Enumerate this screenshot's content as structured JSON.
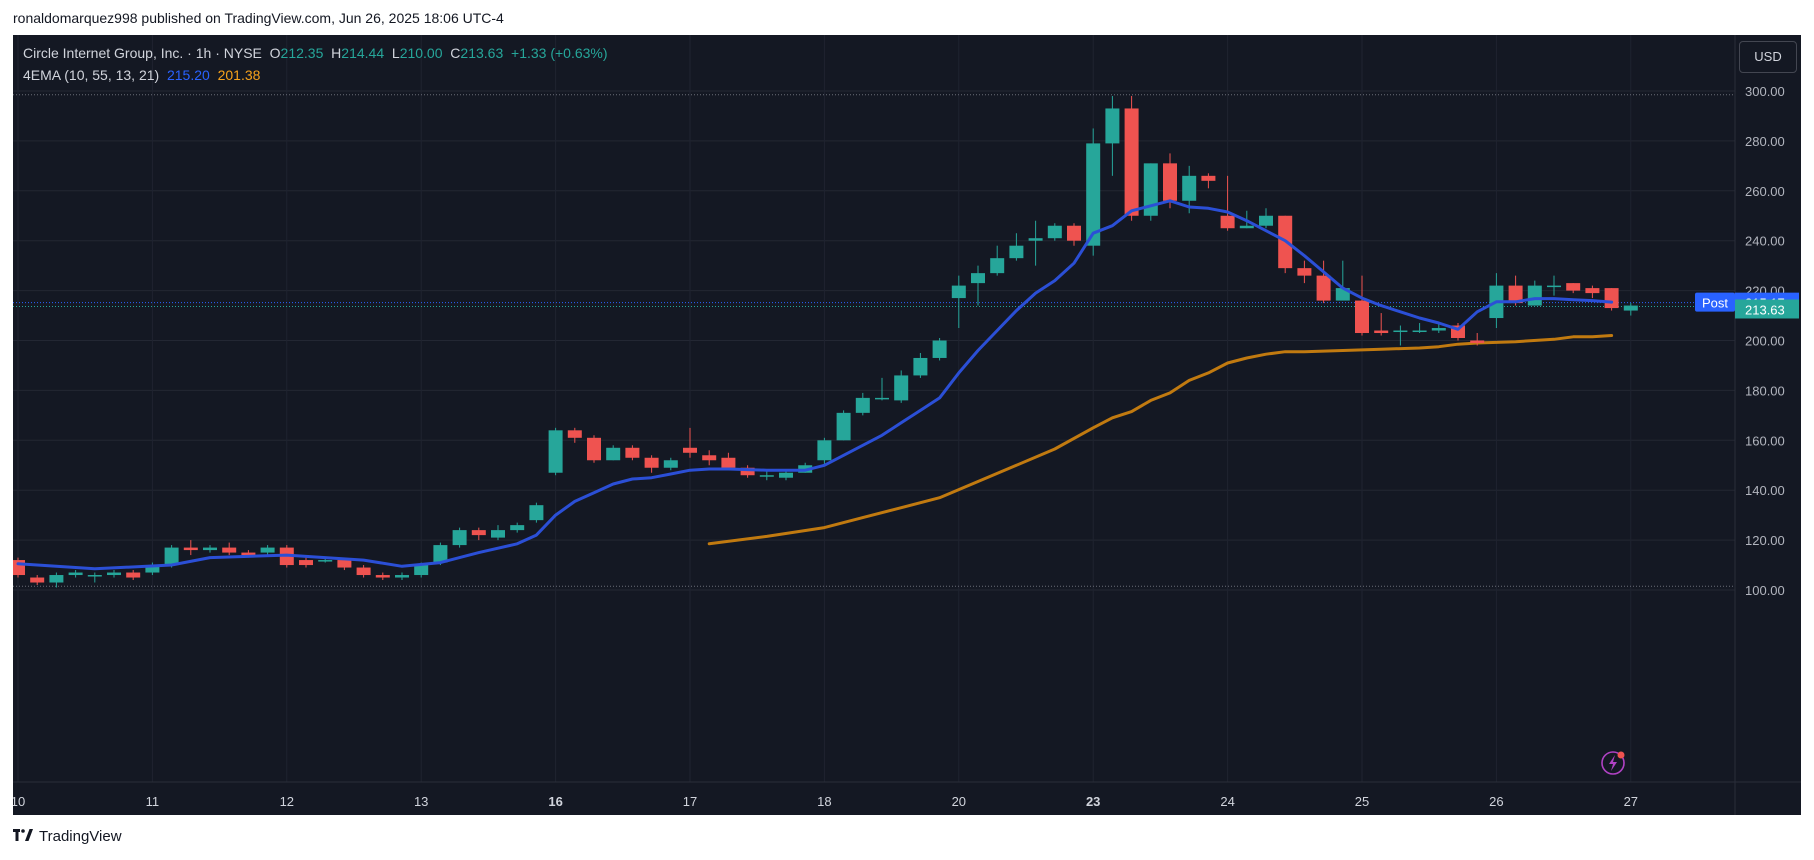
{
  "attribution": "ronaldomarquez998 published on TradingView.com, Jun 26, 2025 18:06 UTC-4",
  "legend": {
    "symbol": "Circle Internet Group, Inc. · 1h · NYSE",
    "o_label": "O",
    "o_value": "212.35",
    "h_label": "H",
    "h_value": "214.44",
    "l_label": "L",
    "l_value": "210.00",
    "c_label": "C",
    "c_value": "213.63",
    "change": "+1.33 (+0.63%)",
    "indicator": "4EMA (10, 55, 13, 21)",
    "ema_fast_value": "215.20",
    "ema_slow_value": "201.38"
  },
  "currency_button": "USD",
  "post_tag": {
    "label": "Post",
    "value": "215.17"
  },
  "last_price_tag": "213.63",
  "footer_brand": "TradingView",
  "colors": {
    "background": "#141823",
    "up": "#26a69a",
    "down": "#ef5350",
    "ema_fast": "#2b4fd6",
    "ema_slow": "#c17a10",
    "text": "#d1d4dc"
  },
  "chart_data": {
    "type": "candlestick",
    "title": "Circle Internet Group, Inc. · 1h · NYSE",
    "ylim": [
      80,
      308
    ],
    "y_ticks": [
      "100.00",
      "120.00",
      "140.00",
      "160.00",
      "180.00",
      "200.00",
      "220.00",
      "240.00",
      "260.00",
      "280.00",
      "300.00"
    ],
    "x_ticks": [
      {
        "label": "10",
        "pos": 0.0,
        "bold": false
      },
      {
        "label": "11",
        "pos": 7.0,
        "bold": false
      },
      {
        "label": "12",
        "pos": 14.0,
        "bold": false
      },
      {
        "label": "13",
        "pos": 21.0,
        "bold": false
      },
      {
        "label": "16",
        "pos": 28.0,
        "bold": true
      },
      {
        "label": "17",
        "pos": 35.0,
        "bold": false
      },
      {
        "label": "18",
        "pos": 42.0,
        "bold": false
      },
      {
        "label": "20",
        "pos": 49.0,
        "bold": false
      },
      {
        "label": "23",
        "pos": 56.0,
        "bold": true
      },
      {
        "label": "24",
        "pos": 63.0,
        "bold": false
      },
      {
        "label": "25",
        "pos": 70.0,
        "bold": false
      },
      {
        "label": "26",
        "pos": 77.0,
        "bold": false
      },
      {
        "label": "27",
        "pos": 84.0,
        "bold": false
      }
    ],
    "dotted_levels": [
      298.5,
      101.5
    ],
    "candles": [
      [
        112,
        106,
        113,
        105
      ],
      [
        105,
        103,
        106,
        102
      ],
      [
        103,
        106,
        107,
        101
      ],
      [
        106,
        107,
        108,
        105
      ],
      [
        106,
        106,
        107,
        103
      ],
      [
        106,
        107,
        108,
        105
      ],
      [
        107,
        105,
        108,
        104
      ],
      [
        107,
        110,
        111,
        106
      ],
      [
        110,
        117,
        118,
        109
      ],
      [
        117,
        116,
        120,
        114
      ],
      [
        116,
        117,
        118,
        115
      ],
      [
        117,
        115,
        119,
        114
      ],
      [
        115,
        114,
        116,
        113
      ],
      [
        115,
        117,
        118,
        114
      ],
      [
        117,
        110,
        118,
        109
      ],
      [
        112,
        110,
        113,
        109
      ],
      [
        112,
        112,
        113,
        111
      ],
      [
        112,
        109,
        113,
        108
      ],
      [
        109,
        106,
        110,
        105
      ],
      [
        106,
        105,
        107,
        104
      ],
      [
        105,
        106,
        107,
        104
      ],
      [
        106,
        110,
        111,
        105
      ],
      [
        111,
        118,
        119,
        110
      ],
      [
        118,
        124,
        125,
        117
      ],
      [
        124,
        122,
        125,
        120
      ],
      [
        121,
        124,
        126,
        120
      ],
      [
        124,
        126,
        127,
        123
      ],
      [
        128,
        134,
        135,
        127
      ],
      [
        147,
        164,
        165,
        146
      ],
      [
        164,
        161,
        165,
        159
      ],
      [
        161,
        152,
        162,
        151
      ],
      [
        152,
        157,
        158,
        152
      ],
      [
        157,
        153,
        158,
        152
      ],
      [
        153,
        149,
        154,
        147
      ],
      [
        149,
        152,
        153,
        148
      ],
      [
        157,
        155,
        165,
        153
      ],
      [
        154,
        152,
        156,
        150
      ],
      [
        153,
        149,
        155,
        148
      ],
      [
        149,
        146,
        150,
        145
      ],
      [
        146,
        146,
        148,
        144
      ],
      [
        145,
        147,
        148,
        144
      ],
      [
        147,
        150,
        151,
        147
      ],
      [
        152,
        160,
        161,
        150
      ],
      [
        160,
        171,
        172,
        160
      ],
      [
        171,
        177,
        179,
        170
      ],
      [
        177,
        177,
        185,
        176
      ],
      [
        176,
        186,
        188,
        175
      ],
      [
        186,
        193,
        195,
        185
      ],
      [
        193,
        200,
        201,
        192
      ],
      [
        217,
        222,
        226,
        205
      ],
      [
        223,
        227,
        230,
        214
      ],
      [
        227,
        233,
        238,
        226
      ],
      [
        233,
        238,
        243,
        232
      ],
      [
        240,
        241,
        248,
        230
      ],
      [
        241,
        246,
        247,
        240
      ],
      [
        246,
        240,
        247,
        238
      ],
      [
        238,
        279,
        285,
        234
      ],
      [
        279,
        293,
        298,
        266
      ],
      [
        293,
        250,
        298,
        248
      ],
      [
        250,
        271,
        271,
        248
      ],
      [
        271,
        256,
        275,
        253
      ],
      [
        256,
        266,
        270,
        251
      ],
      [
        266,
        264,
        267,
        261
      ],
      [
        250,
        245,
        266,
        244
      ],
      [
        245,
        246,
        252,
        245
      ],
      [
        246,
        250,
        253,
        245
      ],
      [
        250,
        229,
        250,
        227
      ],
      [
        229,
        226,
        232,
        223
      ],
      [
        226,
        216,
        232,
        215
      ],
      [
        216,
        221,
        232,
        217
      ],
      [
        216,
        203,
        226,
        202
      ],
      [
        204,
        203,
        211,
        202
      ],
      [
        204,
        204,
        206,
        198
      ],
      [
        204,
        204,
        207,
        203
      ],
      [
        204,
        205,
        207,
        203
      ],
      [
        206,
        201,
        207,
        200
      ],
      [
        200,
        199,
        203,
        198
      ],
      [
        209,
        222,
        227,
        205
      ],
      [
        222,
        215,
        226,
        214
      ],
      [
        214,
        222,
        224,
        215
      ],
      [
        222,
        222,
        226,
        218
      ],
      [
        223,
        220,
        223,
        219
      ],
      [
        221,
        219,
        222,
        217
      ],
      [
        221,
        213,
        221,
        212
      ],
      [
        212,
        214,
        215,
        210
      ]
    ],
    "ema_fast_name": "EMA 10",
    "ema_fast": [
      [
        0,
        110.5
      ],
      [
        4,
        108.5
      ],
      [
        8,
        110
      ],
      [
        10,
        113
      ],
      [
        14,
        114
      ],
      [
        18,
        112
      ],
      [
        20,
        109.5
      ],
      [
        22,
        111
      ],
      [
        24,
        115
      ],
      [
        26,
        118.5
      ],
      [
        27,
        122
      ],
      [
        28,
        130
      ],
      [
        29,
        135.5
      ],
      [
        30,
        139
      ],
      [
        31,
        142.5
      ],
      [
        32,
        144.5
      ],
      [
        33,
        145
      ],
      [
        34,
        146.5
      ],
      [
        35,
        148
      ],
      [
        36,
        148.5
      ],
      [
        37,
        148.5
      ],
      [
        39,
        148
      ],
      [
        41,
        148
      ],
      [
        42,
        150
      ],
      [
        43,
        154
      ],
      [
        44,
        158
      ],
      [
        45,
        162
      ],
      [
        46,
        167
      ],
      [
        47,
        172
      ],
      [
        48,
        177
      ],
      [
        49,
        187
      ],
      [
        50,
        196
      ],
      [
        51,
        204
      ],
      [
        52,
        212
      ],
      [
        53,
        219
      ],
      [
        54,
        224
      ],
      [
        55,
        231
      ],
      [
        56,
        243
      ],
      [
        57,
        246
      ],
      [
        58,
        252
      ],
      [
        59,
        254
      ],
      [
        60,
        256
      ],
      [
        61,
        253.5
      ],
      [
        62,
        253
      ],
      [
        63,
        251.5
      ],
      [
        64,
        248
      ],
      [
        65,
        244
      ],
      [
        66,
        240
      ],
      [
        67,
        234
      ],
      [
        68,
        227.5
      ],
      [
        69,
        221
      ],
      [
        70,
        217
      ],
      [
        71,
        214
      ],
      [
        72,
        211.5
      ],
      [
        73,
        209
      ],
      [
        74,
        207
      ],
      [
        75,
        204.5
      ],
      [
        76,
        211.5
      ],
      [
        77,
        215.5
      ],
      [
        78,
        215.5
      ],
      [
        79,
        216.8
      ],
      [
        80,
        216.8
      ],
      [
        81,
        216.3
      ],
      [
        82,
        216
      ],
      [
        83,
        215.4
      ]
    ],
    "ema_slow_name": "EMA 55",
    "ema_slow": [
      [
        36,
        118.5
      ],
      [
        39,
        121.5
      ],
      [
        42,
        125
      ],
      [
        44,
        129
      ],
      [
        46,
        133
      ],
      [
        48,
        137
      ],
      [
        50,
        143.5
      ],
      [
        52,
        150
      ],
      [
        54,
        156.5
      ],
      [
        56,
        165
      ],
      [
        57,
        169
      ],
      [
        58,
        171.5
      ],
      [
        59,
        176
      ],
      [
        60,
        179
      ],
      [
        61,
        184
      ],
      [
        62,
        187
      ],
      [
        63,
        191
      ],
      [
        64,
        193
      ],
      [
        65,
        194.5
      ],
      [
        66,
        195.5
      ],
      [
        67,
        195.5
      ],
      [
        69,
        196
      ],
      [
        71,
        196.5
      ],
      [
        73,
        197
      ],
      [
        74,
        197.5
      ],
      [
        75,
        198.5
      ],
      [
        76,
        199
      ],
      [
        78,
        199.5
      ],
      [
        80,
        200.5
      ],
      [
        81,
        201.5
      ],
      [
        82,
        201.5
      ],
      [
        83,
        202
      ]
    ]
  }
}
